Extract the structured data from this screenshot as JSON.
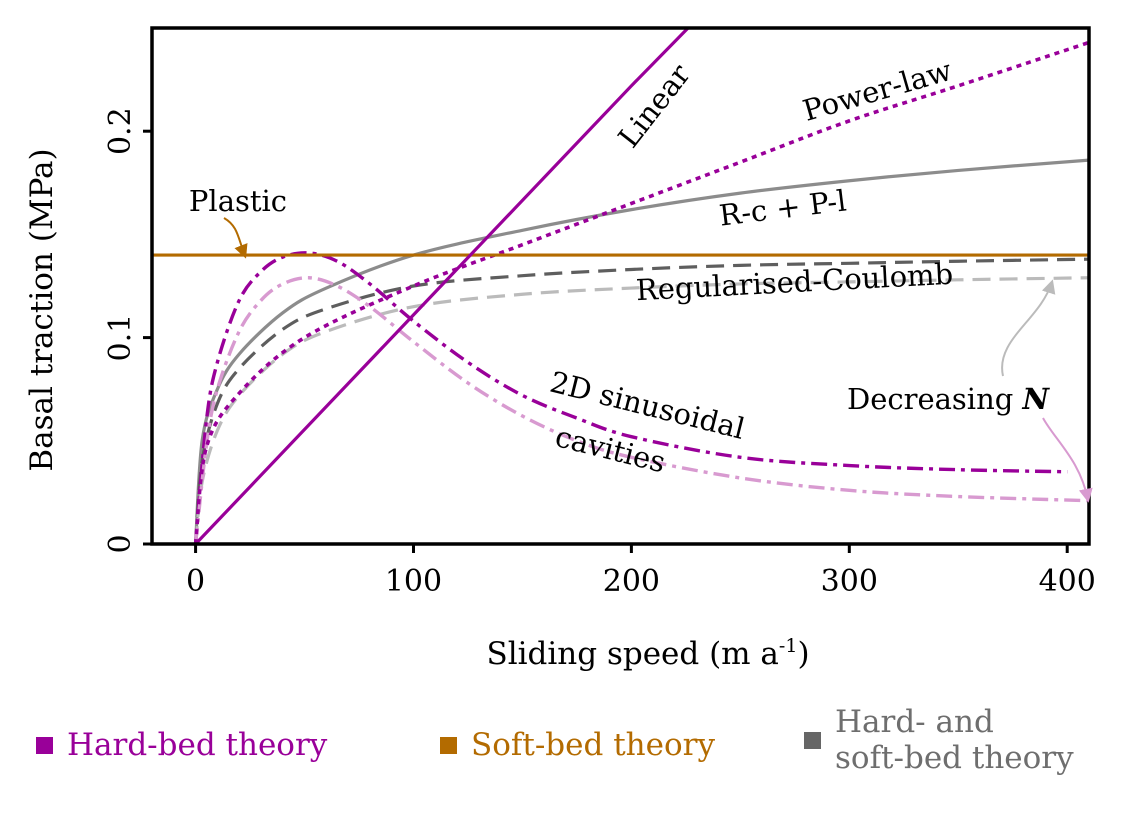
{
  "chart_data": {
    "type": "line",
    "xlabel": "Sliding speed (m a",
    "xlabel_sup": "-1",
    "xlabel_end": ")",
    "ylabel": "Basal traction (MPa)",
    "xlim": [
      -20,
      410
    ],
    "ylim": [
      0,
      0.25
    ],
    "xticks": [
      0,
      100,
      200,
      300,
      400
    ],
    "xtick_labels": [
      "0",
      "100",
      "200",
      "300",
      "400"
    ],
    "yticks": [
      0,
      0.1,
      0.2
    ],
    "ytick_labels": [
      "0",
      "0.1",
      "0.2"
    ],
    "colors": {
      "hard_bed": "#990099",
      "hard_bed_light": "#d89ad0",
      "soft_bed": "#b36b00",
      "hybrid": "#8c8c8c",
      "hybrid_dark": "#5e5e5e",
      "hybrid_light": "#bbbbbb"
    },
    "series": [
      {
        "name": "Linear",
        "group": "hard_bed",
        "style": "solid",
        "x": [
          0,
          100,
          200,
          226
        ],
        "y": [
          0,
          0.111,
          0.222,
          0.25
        ]
      },
      {
        "name": "Power-law",
        "group": "hard_bed",
        "style": "dotted",
        "x": [
          0,
          5,
          20,
          50,
          100,
          150,
          200,
          250,
          300,
          350,
          410
        ],
        "y": [
          0,
          0.047,
          0.073,
          0.1,
          0.125,
          0.145,
          0.165,
          0.185,
          0.205,
          0.222,
          0.243
        ]
      },
      {
        "name": "Plastic",
        "group": "soft_bed",
        "style": "solid",
        "x": [
          -20,
          410
        ],
        "y": [
          0.14,
          0.14
        ]
      },
      {
        "name": "R-c + P-l",
        "group": "hybrid",
        "style": "solid",
        "x": [
          0,
          3,
          10,
          20,
          40,
          60,
          100,
          150,
          200,
          250,
          300,
          350,
          410
        ],
        "y": [
          0,
          0.05,
          0.075,
          0.092,
          0.112,
          0.124,
          0.14,
          0.152,
          0.162,
          0.17,
          0.176,
          0.181,
          0.186
        ]
      },
      {
        "name": "Regularised-Coulomb (high N)",
        "group": "hybrid",
        "style": "dashed",
        "x": [
          0,
          3,
          10,
          20,
          40,
          60,
          100,
          150,
          200,
          250,
          300,
          350,
          410
        ],
        "y": [
          0,
          0.04,
          0.068,
          0.085,
          0.104,
          0.114,
          0.125,
          0.13,
          0.133,
          0.135,
          0.136,
          0.137,
          0.138
        ]
      },
      {
        "name": "Regularised-Coulomb (low N)",
        "group": "hybrid",
        "style": "dashed-light",
        "x": [
          0,
          3,
          10,
          20,
          40,
          60,
          100,
          150,
          200,
          250,
          300,
          350,
          410
        ],
        "y": [
          0,
          0.03,
          0.055,
          0.072,
          0.092,
          0.103,
          0.115,
          0.121,
          0.124,
          0.126,
          0.127,
          0.128,
          0.129
        ]
      },
      {
        "name": "2D sinusoidal cavities (high N)",
        "group": "hard_bed",
        "style": "dashdot",
        "x": [
          0,
          5,
          10,
          20,
          30,
          40,
          52,
          65,
          80,
          100,
          125,
          150,
          175,
          200,
          250,
          300,
          350,
          400
        ],
        "y": [
          0,
          0.06,
          0.088,
          0.118,
          0.132,
          0.139,
          0.141,
          0.137,
          0.126,
          0.108,
          0.088,
          0.072,
          0.061,
          0.052,
          0.042,
          0.038,
          0.036,
          0.035
        ]
      },
      {
        "name": "2D sinusoidal cavities (low N)",
        "group": "hard_bed",
        "style": "dashdot-light",
        "x": [
          0,
          5,
          10,
          20,
          30,
          40,
          52,
          65,
          80,
          100,
          125,
          150,
          175,
          200,
          250,
          300,
          350,
          410
        ],
        "y": [
          0,
          0.048,
          0.075,
          0.103,
          0.118,
          0.126,
          0.129,
          0.125,
          0.115,
          0.098,
          0.078,
          0.062,
          0.05,
          0.042,
          0.032,
          0.026,
          0.023,
          0.021
        ]
      }
    ],
    "annotations": {
      "linear": "Linear",
      "power_law": "Power-law",
      "rc_pl": "R-c + P-l",
      "plastic": "Plastic",
      "reg_coulomb": "Regularised-Coulomb",
      "sinusoidal_line1": "2D sinusoidal",
      "sinusoidal_line2": "cavities",
      "decreasing": "Decreasing ",
      "decreasing_var": "N"
    },
    "legend": [
      {
        "label": "Hard-bed theory",
        "color": "#990099"
      },
      {
        "label": "Soft-bed theory",
        "color": "#b36b00"
      },
      {
        "label_line1": "Hard- and",
        "label_line2": "soft-bed theory",
        "color": "#666666",
        "text_color": "#6e6e6e"
      }
    ]
  }
}
